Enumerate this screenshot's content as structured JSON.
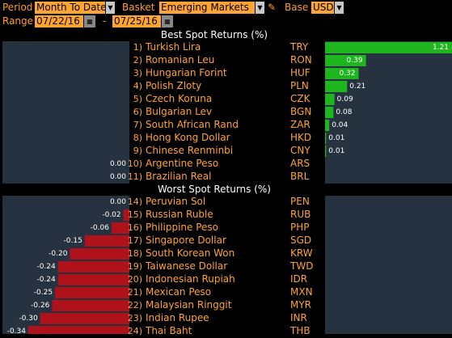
{
  "toolbar": {
    "period_label": "Period",
    "period_value": "Month To Date",
    "basket_label": "Basket",
    "basket_value": "Emerging Markets",
    "base_label": "Base",
    "base_value": "USD",
    "range_label": "Range",
    "range_start": "07/22/16",
    "range_end": "07/25/16",
    "range_dash": "-",
    "dropdown_icon": "chevron-down-icon",
    "calendar_icon": "calendar-icon",
    "edit_icon": "pencil-icon"
  },
  "best": {
    "title": "Best Spot Returns (%)",
    "rows": [
      {
        "rank": "1)",
        "name": "Turkish Lira",
        "code": "TRY",
        "value": 1.21,
        "label": "1.21"
      },
      {
        "rank": "2)",
        "name": "Romanian Leu",
        "code": "RON",
        "value": 0.39,
        "label": "0.39"
      },
      {
        "rank": "3)",
        "name": "Hungarian Forint",
        "code": "HUF",
        "value": 0.32,
        "label": "0.32"
      },
      {
        "rank": "4)",
        "name": "Polish Zloty",
        "code": "PLN",
        "value": 0.21,
        "label": "0.21"
      },
      {
        "rank": "5)",
        "name": "Czech Koruna",
        "code": "CZK",
        "value": 0.09,
        "label": "0.09"
      },
      {
        "rank": "6)",
        "name": "Bulgarian Lev",
        "code": "BGN",
        "value": 0.08,
        "label": "0.08"
      },
      {
        "rank": "7)",
        "name": "South African Rand",
        "code": "ZAR",
        "value": 0.04,
        "label": "0.04"
      },
      {
        "rank": "8)",
        "name": "Hong Kong Dollar",
        "code": "HKD",
        "value": 0.01,
        "label": "0.01"
      },
      {
        "rank": "9)",
        "name": "Chinese Renminbi",
        "code": "CNY",
        "value": 0.01,
        "label": "0.01"
      },
      {
        "rank": "10)",
        "name": "Argentine Peso",
        "code": "ARS",
        "value": 0.0,
        "label": "0.00"
      },
      {
        "rank": "11)",
        "name": "Brazilian Real",
        "code": "BRL",
        "value": 0.0,
        "label": "0.00"
      }
    ]
  },
  "worst": {
    "title": "Worst Spot Returns (%)",
    "rows": [
      {
        "rank": "14)",
        "name": "Peruvian Sol",
        "code": "PEN",
        "value": 0.0,
        "label": "0.00"
      },
      {
        "rank": "15)",
        "name": "Russian Ruble",
        "code": "RUB",
        "value": -0.02,
        "label": "-0.02"
      },
      {
        "rank": "16)",
        "name": "Philippine Peso",
        "code": "PHP",
        "value": -0.06,
        "label": "-0.06"
      },
      {
        "rank": "17)",
        "name": "Singapore Dollar",
        "code": "SGD",
        "value": -0.15,
        "label": "-0.15"
      },
      {
        "rank": "18)",
        "name": "South Korean Won",
        "code": "KRW",
        "value": -0.2,
        "label": "-0.20"
      },
      {
        "rank": "19)",
        "name": "Taiwanese Dollar",
        "code": "TWD",
        "value": -0.24,
        "label": "-0.24"
      },
      {
        "rank": "20)",
        "name": "Indonesian Rupiah",
        "code": "IDR",
        "value": -0.24,
        "label": "-0.24"
      },
      {
        "rank": "21)",
        "name": "Mexican Peso",
        "code": "MXN",
        "value": -0.25,
        "label": "-0.25"
      },
      {
        "rank": "22)",
        "name": "Malaysian Ringgit",
        "code": "MYR",
        "value": -0.26,
        "label": "-0.26"
      },
      {
        "rank": "23)",
        "name": "Indian Rupee",
        "code": "INR",
        "value": -0.3,
        "label": "-0.30"
      },
      {
        "rank": "24)",
        "name": "Thai Baht",
        "code": "THB",
        "value": -0.34,
        "label": "-0.34"
      }
    ]
  },
  "colors": {
    "accent": "#ffa431",
    "positive": "#1fb51f",
    "negative": "#b0121b",
    "panel": "#26323f"
  }
}
